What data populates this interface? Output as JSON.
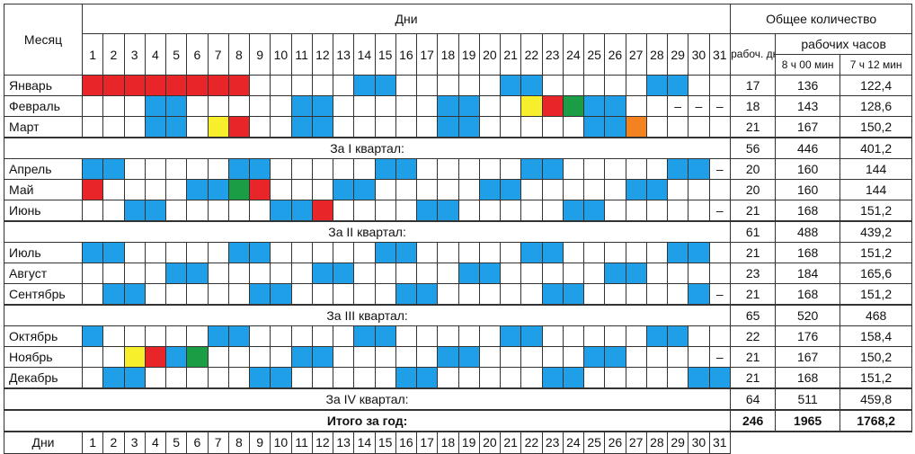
{
  "header": {
    "month": "Месяц",
    "days": "Дни",
    "total": "Общее количество",
    "work_days": "рабоч. дней",
    "work_hours": "рабочих часов",
    "h8": "8 ч 00 мин",
    "h7": "7 ч 12 мин",
    "day_numbers": [
      1,
      2,
      3,
      4,
      5,
      6,
      7,
      8,
      9,
      10,
      11,
      12,
      13,
      14,
      15,
      16,
      17,
      18,
      19,
      20,
      21,
      22,
      23,
      24,
      25,
      26,
      27,
      28,
      29,
      30,
      31
    ]
  },
  "colors": {
    "w": "#ffffff",
    "b": "#1f9fe8",
    "r": "#e8262a",
    "y": "#f7ee2c",
    "g": "#1a9d45",
    "o": "#f58220"
  },
  "rows": [
    {
      "month": "Январь",
      "cells": [
        "r",
        "r",
        "r",
        "r",
        "r",
        "r",
        "r",
        "r",
        "w",
        "w",
        "w",
        "w",
        "w",
        "b",
        "b",
        "w",
        "w",
        "w",
        "w",
        "w",
        "b",
        "b",
        "w",
        "w",
        "w",
        "w",
        "w",
        "b",
        "b",
        "w",
        "w"
      ],
      "values": [
        "17",
        "136",
        "122,4"
      ]
    },
    {
      "month": "Февраль",
      "cells": [
        "w",
        "w",
        "w",
        "b",
        "b",
        "w",
        "w",
        "w",
        "w",
        "w",
        "b",
        "b",
        "w",
        "w",
        "w",
        "w",
        "w",
        "b",
        "b",
        "w",
        "w",
        "y",
        "r",
        "g",
        "b",
        "b",
        "w",
        "w",
        "–",
        "–",
        "–"
      ],
      "values": [
        "18",
        "143",
        "128,6"
      ]
    },
    {
      "month": "Март",
      "cells": [
        "w",
        "w",
        "w",
        "b",
        "b",
        "w",
        "y",
        "r",
        "w",
        "w",
        "b",
        "b",
        "w",
        "w",
        "w",
        "w",
        "w",
        "b",
        "b",
        "w",
        "w",
        "w",
        "w",
        "w",
        "b",
        "b",
        "o",
        "w",
        "w",
        "w",
        "w"
      ],
      "values": [
        "21",
        "167",
        "150,2"
      ]
    },
    {
      "label": "За I квартал:",
      "values": [
        "56",
        "446",
        "401,2"
      ]
    },
    {
      "month": "Апрель",
      "cells": [
        "b",
        "b",
        "w",
        "w",
        "w",
        "w",
        "w",
        "b",
        "b",
        "w",
        "w",
        "w",
        "w",
        "w",
        "b",
        "b",
        "w",
        "w",
        "w",
        "w",
        "w",
        "b",
        "b",
        "w",
        "w",
        "w",
        "w",
        "w",
        "b",
        "b",
        "–"
      ],
      "values": [
        "20",
        "160",
        "144"
      ]
    },
    {
      "month": "Май",
      "cells": [
        "r",
        "w",
        "w",
        "w",
        "w",
        "b",
        "b",
        "g",
        "r",
        "w",
        "w",
        "w",
        "b",
        "b",
        "w",
        "w",
        "w",
        "w",
        "w",
        "b",
        "b",
        "w",
        "w",
        "w",
        "w",
        "w",
        "b",
        "b",
        "w",
        "w",
        "w"
      ],
      "values": [
        "20",
        "160",
        "144"
      ]
    },
    {
      "month": "Июнь",
      "cells": [
        "w",
        "w",
        "b",
        "b",
        "w",
        "w",
        "w",
        "w",
        "w",
        "b",
        "b",
        "r",
        "w",
        "w",
        "w",
        "w",
        "b",
        "b",
        "w",
        "w",
        "w",
        "w",
        "w",
        "b",
        "b",
        "w",
        "w",
        "w",
        "w",
        "w",
        "–"
      ],
      "values": [
        "21",
        "168",
        "151,2"
      ]
    },
    {
      "label": "За II квартал:",
      "values": [
        "61",
        "488",
        "439,2"
      ]
    },
    {
      "month": "Июль",
      "cells": [
        "b",
        "b",
        "w",
        "w",
        "w",
        "w",
        "w",
        "b",
        "b",
        "w",
        "w",
        "w",
        "w",
        "w",
        "b",
        "b",
        "w",
        "w",
        "w",
        "w",
        "w",
        "b",
        "b",
        "w",
        "w",
        "w",
        "w",
        "w",
        "b",
        "b",
        "w"
      ],
      "values": [
        "21",
        "168",
        "151,2"
      ]
    },
    {
      "month": "Август",
      "cells": [
        "w",
        "w",
        "w",
        "w",
        "b",
        "b",
        "w",
        "w",
        "w",
        "w",
        "w",
        "b",
        "b",
        "w",
        "w",
        "w",
        "w",
        "w",
        "b",
        "b",
        "w",
        "w",
        "w",
        "w",
        "w",
        "b",
        "b",
        "w",
        "w",
        "w",
        "w"
      ],
      "values": [
        "23",
        "184",
        "165,6"
      ]
    },
    {
      "month": "Сентябрь",
      "cells": [
        "w",
        "b",
        "b",
        "w",
        "w",
        "w",
        "w",
        "w",
        "b",
        "b",
        "w",
        "w",
        "w",
        "w",
        "w",
        "b",
        "b",
        "w",
        "w",
        "w",
        "w",
        "w",
        "b",
        "b",
        "w",
        "w",
        "w",
        "w",
        "w",
        "b",
        "–"
      ],
      "values": [
        "21",
        "168",
        "151,2"
      ]
    },
    {
      "label": "За III квартал:",
      "values": [
        "65",
        "520",
        "468"
      ]
    },
    {
      "month": "Октябрь",
      "cells": [
        "b",
        "w",
        "w",
        "w",
        "w",
        "w",
        "b",
        "b",
        "w",
        "w",
        "w",
        "w",
        "w",
        "b",
        "b",
        "w",
        "w",
        "w",
        "w",
        "w",
        "b",
        "b",
        "w",
        "w",
        "w",
        "w",
        "w",
        "b",
        "b",
        "w",
        "w"
      ],
      "values": [
        "22",
        "176",
        "158,4"
      ]
    },
    {
      "month": "Ноябрь",
      "cells": [
        "w",
        "w",
        "y",
        "r",
        "b",
        "g",
        "w",
        "w",
        "w",
        "w",
        "b",
        "b",
        "w",
        "w",
        "w",
        "w",
        "w",
        "b",
        "b",
        "w",
        "w",
        "w",
        "w",
        "w",
        "b",
        "b",
        "w",
        "w",
        "w",
        "w",
        "–"
      ],
      "values": [
        "21",
        "167",
        "150,2"
      ]
    },
    {
      "month": "Декабрь",
      "cells": [
        "w",
        "b",
        "b",
        "w",
        "w",
        "w",
        "w",
        "w",
        "b",
        "b",
        "w",
        "w",
        "w",
        "w",
        "w",
        "b",
        "b",
        "w",
        "w",
        "w",
        "w",
        "w",
        "b",
        "b",
        "w",
        "w",
        "w",
        "w",
        "w",
        "b",
        "b"
      ],
      "values": [
        "21",
        "168",
        "151,2"
      ]
    },
    {
      "label": "За IV квартал:",
      "values": [
        "64",
        "511",
        "459,8"
      ]
    }
  ],
  "year": {
    "label": "Итого за год:",
    "values": [
      "246",
      "1965",
      "1768,2"
    ]
  },
  "footer": {
    "label": "Дни"
  }
}
